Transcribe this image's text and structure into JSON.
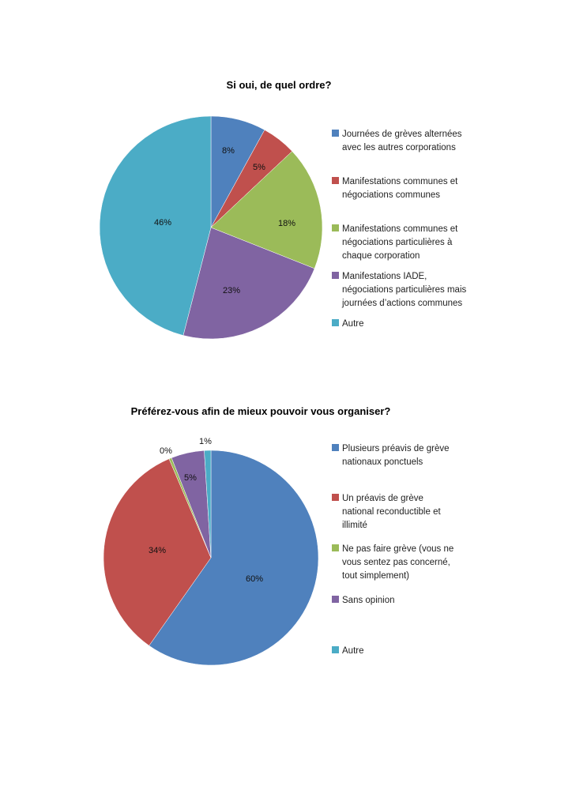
{
  "chart_data": [
    {
      "type": "pie",
      "title": "Si oui, de quel ordre?",
      "categories": [
        "Journées de grèves alternées avec les autres corporations",
        "Manifestations communes et négociations communes",
        "Manifestations communes et négociations particulières à chaque corporation",
        "Manifestations IADE, négociations particulières mais journées d'actions communes",
        "Autre"
      ],
      "legend_lines": [
        [
          "Journées de grèves alternées",
          "avec les autres corporations"
        ],
        [
          "Manifestations communes et",
          "négociations communes"
        ],
        [
          "Manifestations communes et",
          "négociations particulières à",
          "chaque corporation"
        ],
        [
          "Manifestations IADE,",
          "négociations particulières mais",
          "journées d’actions communes"
        ],
        [
          "Autre"
        ]
      ],
      "values": [
        8,
        5,
        18,
        23,
        46
      ],
      "labels": [
        "8%",
        "5%",
        "18%",
        "23%",
        "46%"
      ],
      "colors": [
        "#4f81bd",
        "#c0504d",
        "#9bbb59",
        "#8064a2",
        "#4bacc6"
      ],
      "legend": "right"
    },
    {
      "type": "pie",
      "title": "Préférez-vous afin de mieux pouvoir vous organiser?",
      "categories": [
        "Plusieurs préavis de grève nationaux ponctuels",
        "Un préavis de grève national reconductible et illimité",
        "Ne pas faire grève (vous ne vous sentez pas concerné, tout simplement)",
        "Sans opinion",
        "Autre"
      ],
      "legend_lines": [
        [
          "Plusieurs préavis de grève",
          "nationaux ponctuels"
        ],
        [
          "Un préavis de grève",
          "national reconductible et",
          "illimité"
        ],
        [
          "Ne pas faire grève (vous ne",
          "vous sentez pas concerné,",
          "tout simplement)"
        ],
        [
          "Sans opinion"
        ],
        [
          "Autre"
        ]
      ],
      "values": [
        60,
        34,
        0.4,
        5,
        1
      ],
      "labels": [
        "60%",
        "34%",
        "0%",
        "5%",
        "1%"
      ],
      "colors": [
        "#4f81bd",
        "#c0504d",
        "#9bbb59",
        "#8064a2",
        "#4bacc6"
      ],
      "legend": "right"
    }
  ]
}
